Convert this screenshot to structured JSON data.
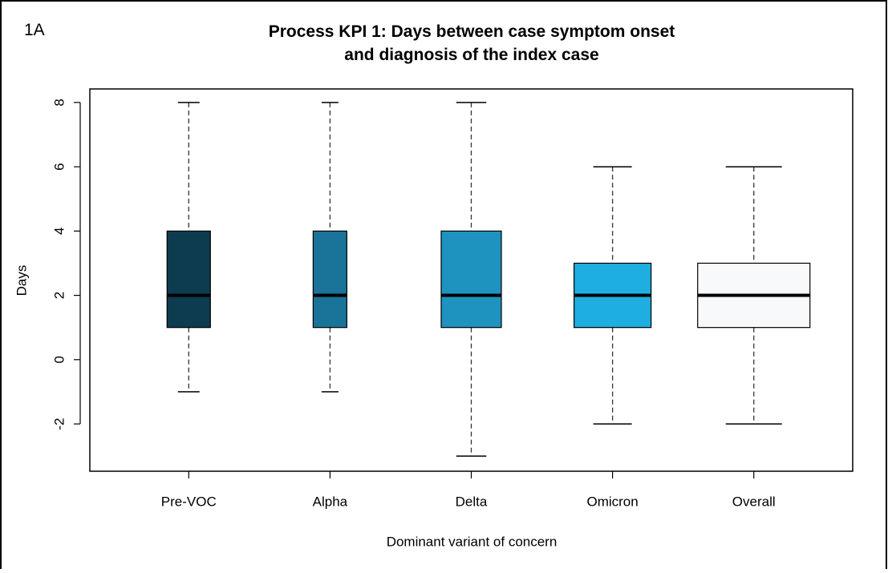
{
  "chart_data": {
    "type": "box",
    "panel_label": "1A",
    "title": [
      "Process KPI 1: Days between case symptom onset",
      "and diagnosis of the index case"
    ],
    "x_label": "Dominant variant of concern",
    "y_label": "Days",
    "categories": [
      "Pre-VOC",
      "Alpha",
      "Delta",
      "Omicron",
      "Overall"
    ],
    "colors": [
      "#0d3b4f",
      "#1a7399",
      "#1e93bf",
      "#1eaee0",
      "#f7f9fb"
    ],
    "boxes": [
      {
        "low": -1,
        "q1": 1,
        "median": 2,
        "q3": 4,
        "high": 8
      },
      {
        "low": -1,
        "q1": 1,
        "median": 2,
        "q3": 4,
        "high": 8
      },
      {
        "low": -3,
        "q1": 1,
        "median": 2,
        "q3": 4,
        "high": 8
      },
      {
        "low": -2,
        "q1": 1,
        "median": 2,
        "q3": 3,
        "high": 6
      },
      {
        "low": -2,
        "q1": 1,
        "median": 2,
        "q3": 3,
        "high": 6
      }
    ],
    "ylim": [
      -3.47,
      8.42
    ],
    "yticks": [
      -2,
      0,
      2,
      4,
      6,
      8
    ]
  }
}
